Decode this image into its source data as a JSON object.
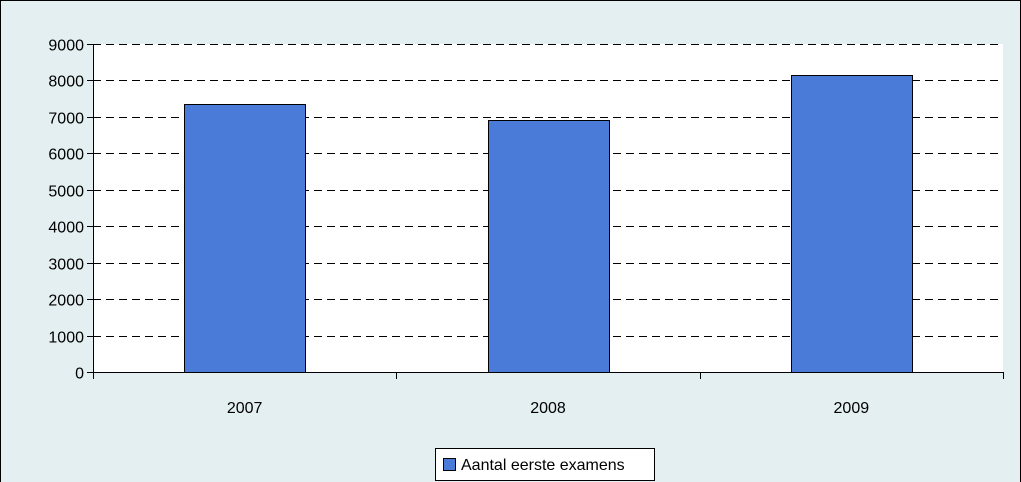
{
  "chart_data": {
    "type": "bar",
    "categories": [
      "2007",
      "2008",
      "2009"
    ],
    "series": [
      {
        "name": "Aantal eerste examens",
        "values": [
          7350,
          6920,
          8150
        ],
        "color": "#4a7bd8"
      }
    ],
    "ylim": [
      0,
      9000
    ],
    "yticks": [
      0,
      1000,
      2000,
      3000,
      4000,
      5000,
      6000,
      7000,
      8000,
      9000
    ],
    "ytick_labels": [
      "0",
      "1000",
      "2000",
      "3000",
      "4000",
      "5000",
      "6000",
      "7000",
      "8000",
      "9000"
    ],
    "grid": "dashed-horizontal",
    "legend_position": "bottom-center",
    "background_color": "#e4eff2",
    "plot_background_color": "#ffffff",
    "border_color": "#000000"
  }
}
